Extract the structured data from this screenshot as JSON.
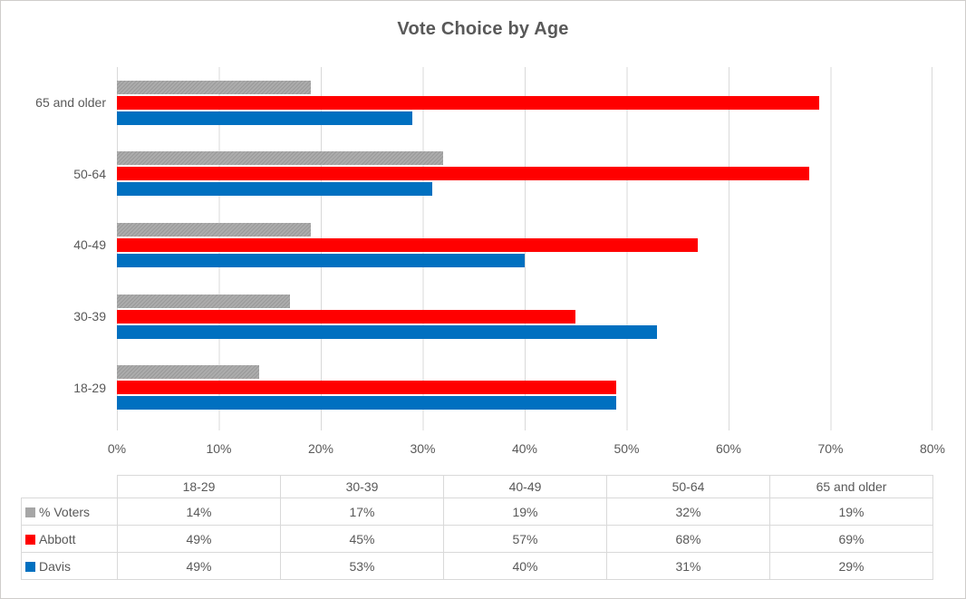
{
  "title": "Vote Choice by Age",
  "colors": {
    "text": "#595959",
    "gridline": "#D9D9D9",
    "canvas_border": "#CFCDCB",
    "voters_gray": "#A6A6A6",
    "abbott_red": "#FF0000",
    "davis_blue": "#0070C0"
  },
  "chart_data": {
    "type": "bar",
    "orientation": "horizontal",
    "title": "Vote Choice by Age",
    "categories": [
      "18-29",
      "30-39",
      "40-49",
      "50-64",
      "65 and older"
    ],
    "category_order_top_to_bottom": [
      "65 and older",
      "50-64",
      "40-49",
      "30-39",
      "18-29"
    ],
    "series": [
      {
        "name": "% Voters",
        "color": "#A6A6A6",
        "values": [
          14,
          17,
          19,
          32,
          19
        ]
      },
      {
        "name": "Abbott",
        "color": "#FF0000",
        "values": [
          49,
          45,
          57,
          68,
          69
        ]
      },
      {
        "name": "Davis",
        "color": "#0070C0",
        "values": [
          49,
          53,
          40,
          31,
          29
        ]
      }
    ],
    "xlim": [
      0,
      80
    ],
    "x_ticks": [
      "0%",
      "10%",
      "20%",
      "30%",
      "40%",
      "50%",
      "60%",
      "70%",
      "80%"
    ],
    "grid": true,
    "legend_position": "table-left",
    "data_table": {
      "columns": [
        "18-29",
        "30-39",
        "40-49",
        "50-64",
        "65 and older"
      ],
      "rows": [
        {
          "label": "% Voters",
          "values": [
            "14%",
            "17%",
            "19%",
            "32%",
            "19%"
          ]
        },
        {
          "label": "Abbott",
          "values": [
            "49%",
            "45%",
            "57%",
            "68%",
            "69%"
          ]
        },
        {
          "label": "Davis",
          "values": [
            "49%",
            "53%",
            "40%",
            "31%",
            "29%"
          ]
        }
      ]
    }
  }
}
